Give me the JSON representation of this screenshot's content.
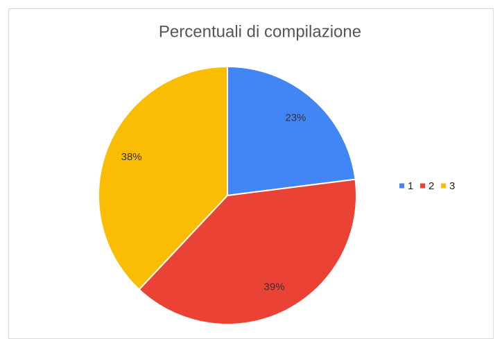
{
  "chart_data": {
    "type": "pie",
    "title": "Percentuali di compilazione",
    "categories": [
      "1",
      "2",
      "3"
    ],
    "values": [
      23,
      39,
      38
    ],
    "value_labels": [
      "23%",
      "39%",
      "38%"
    ],
    "colors": [
      "#4285f4",
      "#ea4335",
      "#fbbc04"
    ],
    "legend": "right"
  }
}
